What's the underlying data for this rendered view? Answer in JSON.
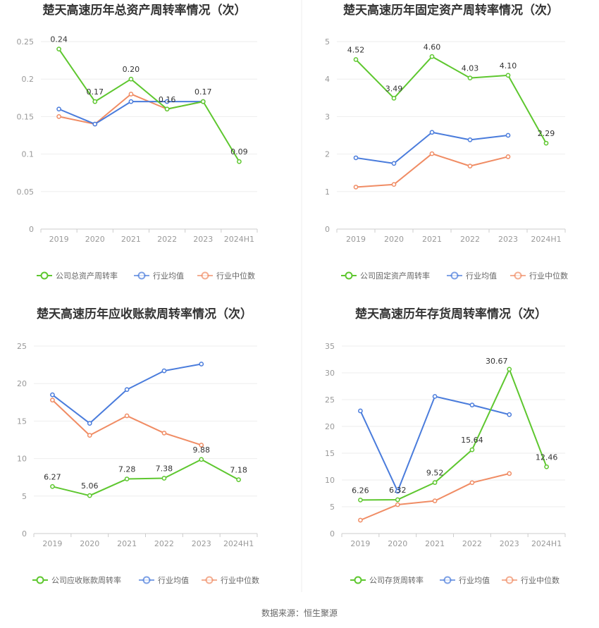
{
  "source_label": "数据来源：恒生聚源",
  "colors": {
    "company": "#5ec72f",
    "avg": "#4a7cdc",
    "median": "#f08c64",
    "grid": "#eeeeee",
    "axis": "#cccccc"
  },
  "chart_data": [
    {
      "type": "line",
      "title": "楚天高速历年总资产周转率情况（次）",
      "categories": [
        "2019",
        "2020",
        "2021",
        "2022",
        "2023",
        "2024H1"
      ],
      "ylim": [
        0,
        0.25
      ],
      "yticks": [
        "0",
        "0.05",
        "0.1",
        "0.15",
        "0.2",
        "0.25"
      ],
      "ytick_values": [
        0,
        0.05,
        0.1,
        0.15,
        0.2,
        0.25
      ],
      "legend_position": "bottom",
      "series": [
        {
          "name": "公司总资产周转率",
          "role": "company",
          "values": [
            0.24,
            0.17,
            0.2,
            0.16,
            0.17,
            0.09
          ],
          "labels": [
            "0.24",
            "0.17",
            "0.20",
            "0.16",
            "0.17",
            "0.09"
          ]
        },
        {
          "name": "行业均值",
          "role": "avg",
          "values": [
            0.16,
            0.14,
            0.17,
            0.17,
            0.17,
            null
          ]
        },
        {
          "name": "行业中位数",
          "role": "median",
          "values": [
            0.15,
            0.14,
            0.18,
            0.16,
            0.17,
            null
          ]
        }
      ]
    },
    {
      "type": "line",
      "title": "楚天高速历年固定资产周转率情况（次）",
      "categories": [
        "2019",
        "2020",
        "2021",
        "2022",
        "2023",
        "2024H1"
      ],
      "ylim": [
        0,
        5
      ],
      "yticks": [
        "0",
        "1",
        "2",
        "3",
        "4",
        "5"
      ],
      "ytick_values": [
        0,
        1,
        2,
        3,
        4,
        5
      ],
      "legend_position": "bottom",
      "series": [
        {
          "name": "公司固定资产周转率",
          "role": "company",
          "values": [
            4.52,
            3.49,
            4.6,
            4.03,
            4.1,
            2.29
          ],
          "labels": [
            "4.52",
            "3.49",
            "4.60",
            "4.03",
            "4.10",
            "2.29"
          ]
        },
        {
          "name": "行业均值",
          "role": "avg",
          "values": [
            1.9,
            1.75,
            2.58,
            2.38,
            2.5,
            null
          ]
        },
        {
          "name": "行业中位数",
          "role": "median",
          "values": [
            1.12,
            1.19,
            2.01,
            1.68,
            1.93,
            null
          ]
        }
      ]
    },
    {
      "type": "line",
      "title": "楚天高速历年应收账款周转率情况（次）",
      "categories": [
        "2019",
        "2020",
        "2021",
        "2022",
        "2023",
        "2024H1"
      ],
      "ylim": [
        0,
        25
      ],
      "yticks": [
        "0",
        "5",
        "10",
        "15",
        "20",
        "25"
      ],
      "ytick_values": [
        0,
        5,
        10,
        15,
        20,
        25
      ],
      "legend_position": "bottom",
      "series": [
        {
          "name": "公司应收账款周转率",
          "role": "company",
          "values": [
            6.27,
            5.06,
            7.28,
            7.38,
            9.88,
            7.18
          ],
          "labels": [
            "6.27",
            "5.06",
            "7.28",
            "7.38",
            "9.88",
            "7.18"
          ]
        },
        {
          "name": "行业均值",
          "role": "avg",
          "values": [
            18.5,
            14.7,
            19.2,
            21.7,
            22.6,
            null
          ]
        },
        {
          "name": "行业中位数",
          "role": "median",
          "values": [
            17.8,
            13.1,
            15.7,
            13.4,
            11.8,
            null
          ]
        }
      ]
    },
    {
      "type": "line",
      "title": "楚天高速历年存货周转率情况（次）",
      "categories": [
        "2019",
        "2020",
        "2021",
        "2022",
        "2023",
        "2024H1"
      ],
      "ylim": [
        0,
        35
      ],
      "yticks": [
        "0",
        "5",
        "10",
        "15",
        "20",
        "25",
        "30",
        "35"
      ],
      "ytick_values": [
        0,
        5,
        10,
        15,
        20,
        25,
        30,
        35
      ],
      "legend_position": "bottom",
      "series": [
        {
          "name": "公司存货周转率",
          "role": "company",
          "values": [
            6.26,
            6.32,
            9.52,
            15.64,
            30.67,
            12.46
          ],
          "labels": [
            "6.26",
            "6.32",
            "9.52",
            "15.64",
            "30.67",
            "12.46"
          ]
        },
        {
          "name": "行业均值",
          "role": "avg",
          "values": [
            22.9,
            7.9,
            25.6,
            24.0,
            22.2,
            null
          ]
        },
        {
          "name": "行业中位数",
          "role": "median",
          "values": [
            2.5,
            5.4,
            6.1,
            9.5,
            11.2,
            null
          ]
        }
      ]
    }
  ]
}
